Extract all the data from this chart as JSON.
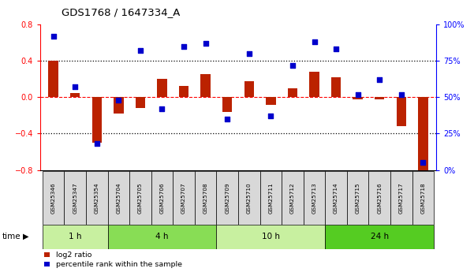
{
  "title": "GDS1768 / 1647334_A",
  "samples": [
    "GSM25346",
    "GSM25347",
    "GSM25354",
    "GSM25704",
    "GSM25705",
    "GSM25706",
    "GSM25707",
    "GSM25708",
    "GSM25709",
    "GSM25710",
    "GSM25711",
    "GSM25712",
    "GSM25713",
    "GSM25714",
    "GSM25715",
    "GSM25716",
    "GSM25717",
    "GSM25718"
  ],
  "log2_ratio": [
    0.4,
    0.05,
    -0.5,
    -0.18,
    -0.12,
    0.2,
    0.12,
    0.25,
    -0.16,
    0.18,
    -0.08,
    0.1,
    0.28,
    0.22,
    -0.02,
    -0.02,
    -0.32,
    -0.82
  ],
  "percentile": [
    92,
    57,
    18,
    48,
    82,
    42,
    85,
    87,
    35,
    80,
    37,
    72,
    88,
    83,
    52,
    62,
    52,
    5
  ],
  "groups": [
    {
      "label": "1 h",
      "start": 0,
      "end": 3,
      "color": "#c8f0a0"
    },
    {
      "label": "4 h",
      "start": 3,
      "end": 8,
      "color": "#88dd55"
    },
    {
      "label": "10 h",
      "start": 8,
      "end": 13,
      "color": "#c8f0a0"
    },
    {
      "label": "24 h",
      "start": 13,
      "end": 18,
      "color": "#55cc22"
    }
  ],
  "bar_color": "#bb2200",
  "dot_color": "#0000cc",
  "left_ylim": [
    -0.8,
    0.8
  ],
  "right_ylim": [
    0,
    100
  ],
  "left_yticks": [
    -0.8,
    -0.4,
    0.0,
    0.4,
    0.8
  ],
  "right_yticks": [
    0,
    25,
    50,
    75,
    100
  ],
  "right_yticklabels": [
    "0%",
    "25%",
    "50%",
    "75%",
    "100%"
  ],
  "hlines_dotted": [
    0.4,
    -0.4
  ],
  "hline_dashed": 0.0,
  "bg_color": "#ffffff",
  "sample_box_color": "#d8d8d8",
  "time_arrow_label": "time",
  "legend_bar_label": "log2 ratio",
  "legend_dot_label": "percentile rank within the sample"
}
